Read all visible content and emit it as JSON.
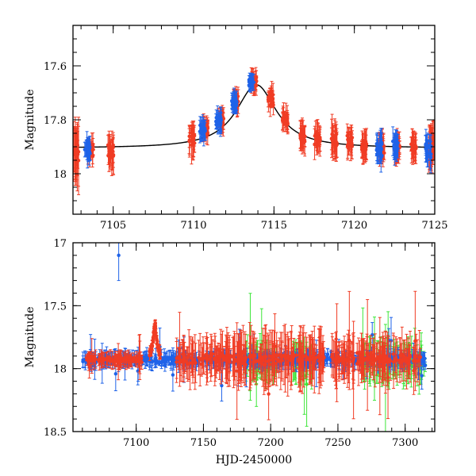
{
  "chart_data": [
    {
      "type": "scatter",
      "panel": "top",
      "title": "",
      "xlabel": "",
      "ylabel": "Magnitude",
      "xlim": [
        7102.5,
        7125.0
      ],
      "ylim": [
        18.15,
        17.45
      ],
      "y_inverted": true,
      "x_major_ticks": [
        7105,
        7110,
        7115,
        7120,
        7125
      ],
      "x_tick_labels": [
        "7105",
        "7110",
        "7115",
        "7120",
        "7125"
      ],
      "y_major_ticks": [
        17.6,
        17.8,
        18.0
      ],
      "y_tick_labels": [
        "17.6",
        "17.8",
        "18"
      ],
      "model_curve": {
        "name": "microlensing model",
        "color": "#000000",
        "baseline": 17.905,
        "peak_time": 7113.9,
        "peak_mag": 17.67,
        "width_days": 1.6
      },
      "series": [
        {
          "name": "red",
          "color": "#f03c24",
          "clusters": [
            {
              "t": 7102.7,
              "mag": 17.92,
              "spread": 0.05,
              "err": 0.09
            },
            {
              "t": 7103.6,
              "mag": 17.91,
              "spread": 0.04,
              "err": 0.03
            },
            {
              "t": 7104.85,
              "mag": 17.92,
              "spread": 0.05,
              "err": 0.05
            },
            {
              "t": 7109.9,
              "mag": 17.87,
              "spread": 0.05,
              "err": 0.05
            },
            {
              "t": 7110.75,
              "mag": 17.83,
              "spread": 0.04,
              "err": 0.03
            },
            {
              "t": 7111.7,
              "mag": 17.8,
              "spread": 0.04,
              "err": 0.03
            },
            {
              "t": 7112.65,
              "mag": 17.73,
              "spread": 0.04,
              "err": 0.03
            },
            {
              "t": 7113.75,
              "mag": 17.66,
              "spread": 0.03,
              "err": 0.03
            },
            {
              "t": 7114.8,
              "mag": 17.72,
              "spread": 0.04,
              "err": 0.03
            },
            {
              "t": 7115.7,
              "mag": 17.8,
              "spread": 0.04,
              "err": 0.03
            },
            {
              "t": 7116.8,
              "mag": 17.86,
              "spread": 0.04,
              "err": 0.04
            },
            {
              "t": 7117.7,
              "mag": 17.87,
              "spread": 0.04,
              "err": 0.04
            },
            {
              "t": 7118.75,
              "mag": 17.88,
              "spread": 0.05,
              "err": 0.05
            },
            {
              "t": 7119.7,
              "mag": 17.88,
              "spread": 0.05,
              "err": 0.04
            },
            {
              "t": 7120.6,
              "mag": 17.9,
              "spread": 0.04,
              "err": 0.04
            },
            {
              "t": 7121.7,
              "mag": 17.9,
              "spread": 0.04,
              "err": 0.04
            },
            {
              "t": 7122.7,
              "mag": 17.9,
              "spread": 0.04,
              "err": 0.04
            },
            {
              "t": 7123.7,
              "mag": 17.9,
              "spread": 0.04,
              "err": 0.04
            },
            {
              "t": 7124.8,
              "mag": 17.9,
              "spread": 0.05,
              "err": 0.06
            }
          ]
        },
        {
          "name": "blue",
          "color": "#1f63e8",
          "clusters": [
            {
              "t": 7103.4,
              "mag": 17.91,
              "spread": 0.04,
              "err": 0.04
            },
            {
              "t": 7110.55,
              "mag": 17.84,
              "spread": 0.04,
              "err": 0.03
            },
            {
              "t": 7111.55,
              "mag": 17.8,
              "spread": 0.04,
              "err": 0.03
            },
            {
              "t": 7112.55,
              "mag": 17.74,
              "spread": 0.03,
              "err": 0.03
            },
            {
              "t": 7113.6,
              "mag": 17.66,
              "spread": 0.03,
              "err": 0.02
            },
            {
              "t": 7121.55,
              "mag": 17.91,
              "spread": 0.05,
              "err": 0.04
            },
            {
              "t": 7122.55,
              "mag": 17.9,
              "spread": 0.04,
              "err": 0.04
            },
            {
              "t": 7124.6,
              "mag": 17.91,
              "spread": 0.05,
              "err": 0.04
            }
          ]
        }
      ]
    },
    {
      "type": "scatter",
      "panel": "bottom",
      "title": "",
      "xlabel": "HJD-2450000",
      "ylabel": "Magnitude",
      "xlim": [
        7053,
        7322
      ],
      "ylim": [
        18.5,
        17.0
      ],
      "y_inverted": true,
      "x_major_ticks": [
        7100,
        7150,
        7200,
        7250,
        7300
      ],
      "x_tick_labels": [
        "7100",
        "7150",
        "7200",
        "7250",
        "7300"
      ],
      "y_major_ticks": [
        17.0,
        17.5,
        18.0,
        18.5
      ],
      "y_tick_labels": [
        "17",
        "17.5",
        "18",
        "18.5"
      ],
      "series": [
        {
          "name": "green",
          "color": "#3ee63a",
          "segments": [
            {
              "t0": 7180,
              "t1": 7205,
              "mag": 17.95,
              "spread": 0.15,
              "err": 0.12
            },
            {
              "t0": 7215,
              "t1": 7232,
              "mag": 17.95,
              "spread": 0.15,
              "err": 0.12
            },
            {
              "t0": 7268,
              "t1": 7315,
              "mag": 17.95,
              "spread": 0.15,
              "err": 0.12
            }
          ]
        },
        {
          "name": "blue",
          "color": "#1f63e8",
          "segments": [
            {
              "t0": 7060,
              "t1": 7315,
              "mag": 17.93,
              "spread": 0.1,
              "err": 0.05
            }
          ],
          "outliers": [
            {
              "t": 7087,
              "mag": 17.1,
              "err": 0.2
            }
          ]
        },
        {
          "name": "red",
          "color": "#f03c24",
          "segments": [
            {
              "t0": 7063,
              "t1": 7108,
              "mag": 17.93,
              "spread": 0.06,
              "err": 0.05
            },
            {
              "t0": 7130,
              "t1": 7182,
              "mag": 17.92,
              "spread": 0.14,
              "err": 0.15
            },
            {
              "t0": 7184,
              "t1": 7240,
              "mag": 17.92,
              "spread": 0.12,
              "err": 0.18
            },
            {
              "t0": 7245,
              "t1": 7312,
              "mag": 17.92,
              "spread": 0.12,
              "err": 0.15
            }
          ],
          "events": [
            {
              "t": 7113.9,
              "peak_mag": 17.66,
              "width_days": 1.6
            }
          ]
        }
      ]
    }
  ]
}
